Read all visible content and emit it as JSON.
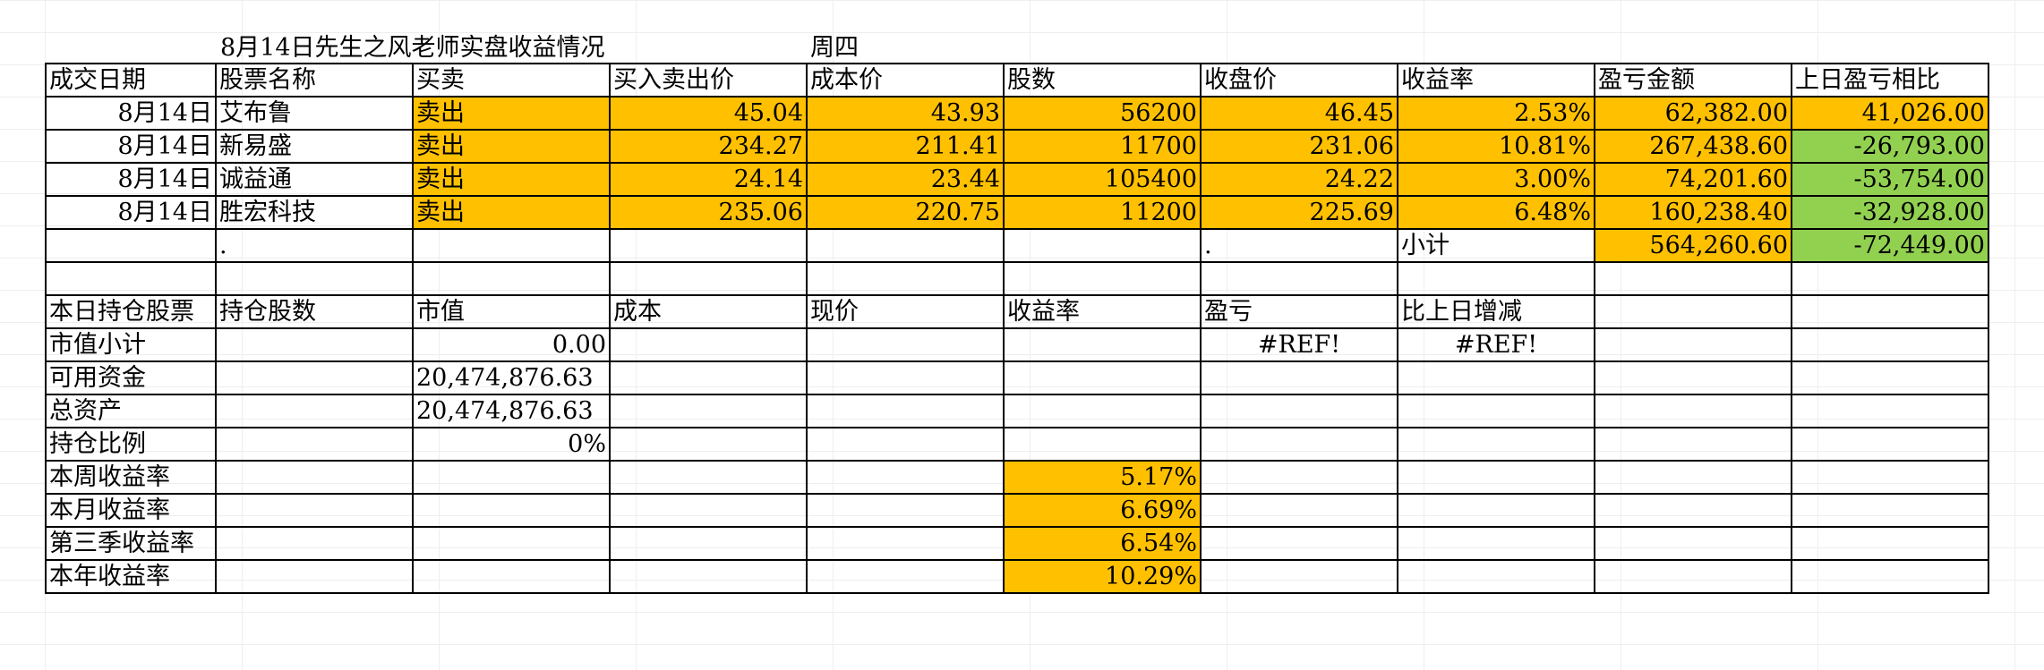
{
  "title": "8月14日先生之风老师实盘收益情况",
  "weekday": "周四",
  "trades_header": [
    "成交日期",
    "股票名称",
    "买卖",
    "买入卖出价",
    "成本价",
    "股数",
    "收盘价",
    "收益率",
    "盈亏金额",
    "上日盈亏相比"
  ],
  "trades": [
    {
      "date": "8月14日",
      "name": "艾布鲁",
      "side": "卖出",
      "price": "45.04",
      "cost": "43.93",
      "shares": "56200",
      "close": "46.45",
      "return": "2.53%",
      "pnl": "62,382.00",
      "vs_prev": "41,026.00"
    },
    {
      "date": "8月14日",
      "name": "新易盛",
      "side": "卖出",
      "price": "234.27",
      "cost": "211.41",
      "shares": "11700",
      "close": "231.06",
      "return": "10.81%",
      "pnl": "267,438.60",
      "vs_prev": "-26,793.00"
    },
    {
      "date": "8月14日",
      "name": "诚益通",
      "side": "卖出",
      "price": "24.14",
      "cost": "23.44",
      "shares": "105400",
      "close": "24.22",
      "return": "3.00%",
      "pnl": "74,201.60",
      "vs_prev": "-53,754.00"
    },
    {
      "date": "8月14日",
      "name": "胜宏科技",
      "side": "卖出",
      "price": "235.06",
      "cost": "220.75",
      "shares": "11200",
      "close": "225.69",
      "return": "6.48%",
      "pnl": "160,238.40",
      "vs_prev": "-32,928.00"
    }
  ],
  "subtotal": {
    "dot1": ".",
    "dot2": ".",
    "label": "小计",
    "pnl": "564,260.60",
    "vs_prev": "-72,449.00"
  },
  "holdings_header": [
    "本日持仓股票",
    "持仓股数",
    "市值",
    "成本",
    "现价",
    "收益率",
    "盈亏",
    "比上日增减"
  ],
  "summary": {
    "mv_label": "市值小计",
    "mv_value": "0.00",
    "mv_pnl": "#REF!",
    "mv_change": "#REF!",
    "cash_label": "可用资金",
    "cash_value": "20,474,876.63",
    "assets_label": "总资产",
    "assets_value": "20,474,876.63",
    "ratio_label": "持仓比例",
    "ratio_value": "0%",
    "week_label": "本周收益率",
    "week_value": "5.17%",
    "month_label": "本月收益率",
    "month_value": "6.69%",
    "q3_label": "第三季收益率",
    "q3_value": "6.54%",
    "year_label": "本年收益率",
    "year_value": "10.29%"
  },
  "colors": {
    "highlight_orange": "#ffc000",
    "highlight_green": "#92d050"
  }
}
